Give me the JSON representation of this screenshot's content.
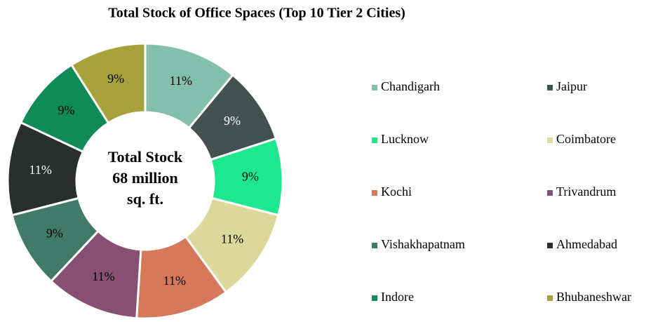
{
  "chart_data": {
    "type": "donut",
    "title": "Total Stock of Office Spaces (Top 10 Tier 2 Cities)",
    "center_label": [
      "Total Stock",
      "68 million",
      "sq. ft."
    ],
    "categories": [
      "Chandigarh",
      "Jaipur",
      "Lucknow",
      "Coimbatore",
      "Kochi",
      "Trivandrum",
      "Vishakhapatnam",
      "Ahmedabad",
      "Indore",
      "Bhubaneshwar"
    ],
    "values": [
      11,
      9,
      9,
      11,
      11,
      11,
      9,
      11,
      9,
      9
    ],
    "value_labels": [
      "11%",
      "9%",
      "9%",
      "11%",
      "11%",
      "11%",
      "9%",
      "11%",
      "9%",
      "9%"
    ],
    "colors": [
      "#84bfad",
      "#435150",
      "#1de88f",
      "#dcd89a",
      "#d6795a",
      "#874f72",
      "#417a69",
      "#2a2f2e",
      "#108b57",
      "#a8a23c"
    ],
    "legend": "right"
  }
}
